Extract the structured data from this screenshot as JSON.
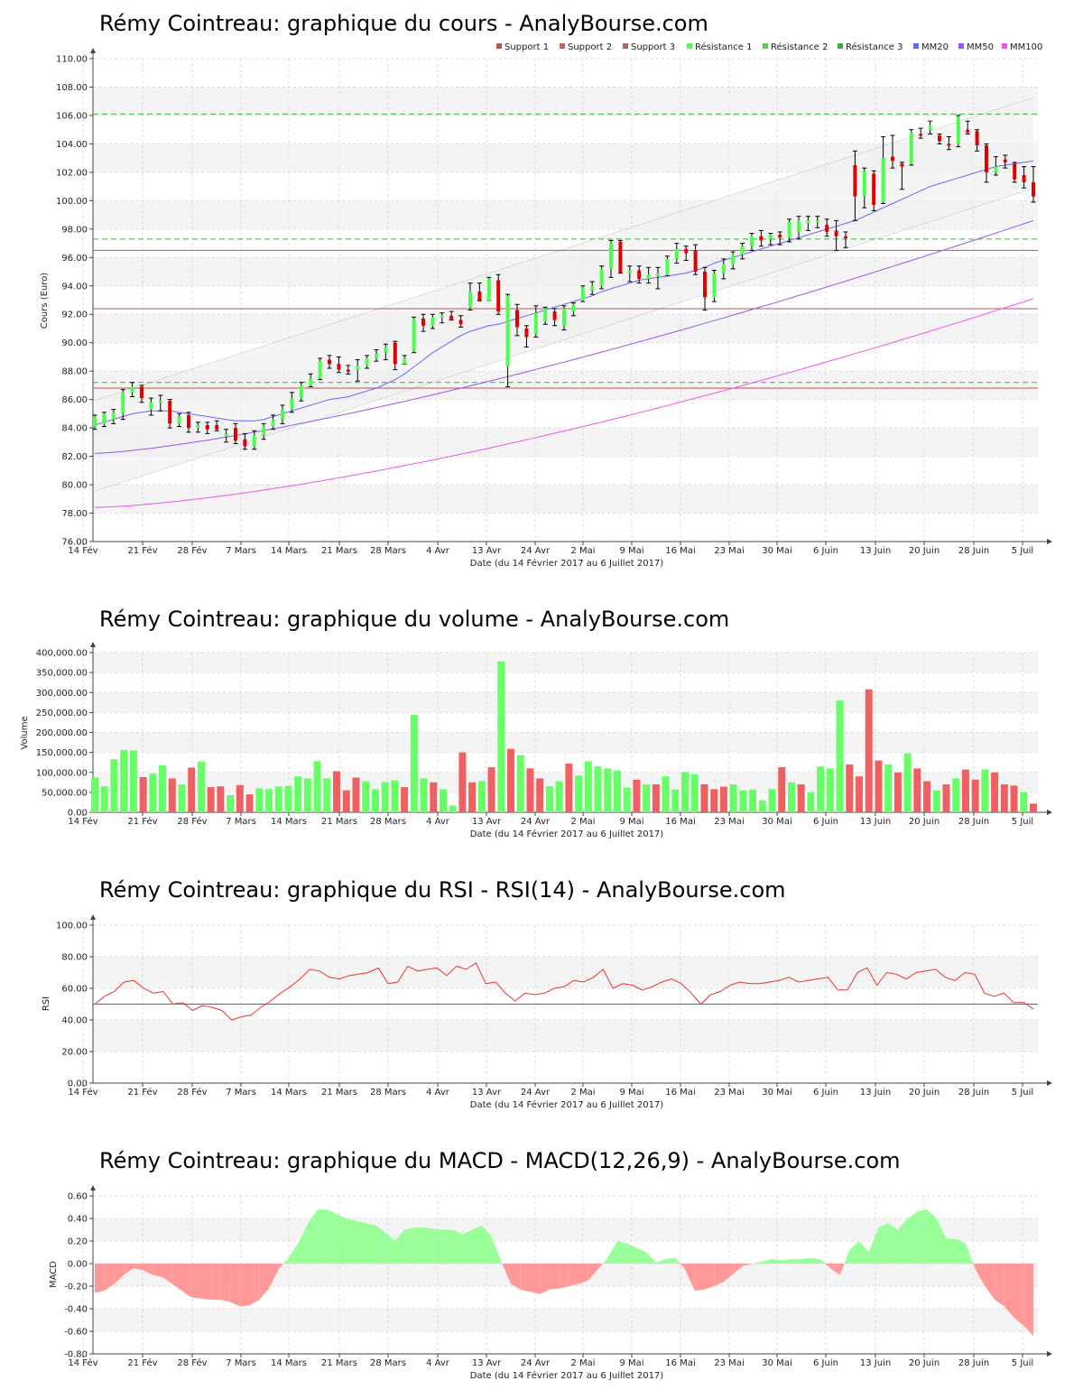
{
  "date_axis_label": "Date (du 14 Février 2017 au 6 Juillet 2017)",
  "date_ticks": [
    "14 Fév",
    "21 Fév",
    "28 Fév",
    "7 Mars",
    "14 Mars",
    "21 Mars",
    "28 Mars",
    "4 Avr",
    "13 Avr",
    "24 Avr",
    "2 Mai",
    "9 Mai",
    "16 Mai",
    "23 Mai",
    "30 Mai",
    "6 Juin",
    "13 Juin",
    "20 Juin",
    "28 Juin",
    "5 Juil"
  ],
  "colors": {
    "up": "#4cff4c",
    "down": "#e00000",
    "vol_up": "#66ff66",
    "vol_down": "#f06060",
    "mm20": "#6666ff",
    "mm50": "#9955ee",
    "mm100": "#ee55ee",
    "support": "#bb5555",
    "resistance": "#44aa44",
    "macd_pos": "#99ff99",
    "macd_neg": "#ff9999",
    "rsi": "#ee3333"
  },
  "chart_data": [
    {
      "type": "candlestick",
      "title": "Rémy Cointreau: graphique du cours - AnalyBourse.com",
      "ylabel": "Cours (Euro)",
      "ylim": [
        76,
        110
      ],
      "yticks": [
        "76.00",
        "78.00",
        "80.00",
        "82.00",
        "84.00",
        "86.00",
        "88.00",
        "90.00",
        "92.00",
        "94.00",
        "96.00",
        "98.00",
        "100.00",
        "102.00",
        "104.00",
        "106.00",
        "108.00",
        "110.00"
      ],
      "grid": true,
      "legend_position": "top-right",
      "legend": [
        "Support 1",
        "Support 2",
        "Support 3",
        "Résistance 1",
        "Résistance 2",
        "Résistance 3",
        "MM20",
        "MM50",
        "MM100"
      ],
      "support_lines": [
        92.4,
        96.5,
        86.8
      ],
      "resistance_lines": [
        97.3,
        106.1,
        87.2
      ],
      "ohlc": [
        [
          84.1,
          84.9,
          83.9,
          84.8
        ],
        [
          84.3,
          85.1,
          84.1,
          85.0
        ],
        [
          84.6,
          85.3,
          84.3,
          85.1
        ],
        [
          85.0,
          86.7,
          84.6,
          86.5
        ],
        [
          86.5,
          87.2,
          86.2,
          86.9
        ],
        [
          86.9,
          87.0,
          85.8,
          86.1
        ],
        [
          85.3,
          86.1,
          84.9,
          85.8
        ],
        [
          85.8,
          86.3,
          85.2,
          85.9
        ],
        [
          85.9,
          86.0,
          84.0,
          84.3
        ],
        [
          84.3,
          85.0,
          84.1,
          84.8
        ],
        [
          84.9,
          85.1,
          83.7,
          84.0
        ],
        [
          84.0,
          84.4,
          83.7,
          84.2
        ],
        [
          84.2,
          84.4,
          83.6,
          83.9
        ],
        [
          84.2,
          84.5,
          83.8,
          83.9
        ],
        [
          83.4,
          83.9,
          83.0,
          83.6
        ],
        [
          84.0,
          84.3,
          82.9,
          83.1
        ],
        [
          83.2,
          83.6,
          82.5,
          82.7
        ],
        [
          82.7,
          83.8,
          82.5,
          83.5
        ],
        [
          83.5,
          84.3,
          83.2,
          84.1
        ],
        [
          84.1,
          84.9,
          83.9,
          84.6
        ],
        [
          84.6,
          85.6,
          84.3,
          85.3
        ],
        [
          85.3,
          86.5,
          85.1,
          86.1
        ],
        [
          86.1,
          87.2,
          85.9,
          87.0
        ],
        [
          87.0,
          87.8,
          86.9,
          87.5
        ],
        [
          87.5,
          88.9,
          87.4,
          88.7
        ],
        [
          88.8,
          89.1,
          88.2,
          88.5
        ],
        [
          88.5,
          89.0,
          87.9,
          88.1
        ],
        [
          88.1,
          88.4,
          87.8,
          88.0
        ],
        [
          88.1,
          88.8,
          87.3,
          88.4
        ],
        [
          88.4,
          89.1,
          88.2,
          88.9
        ],
        [
          88.9,
          89.5,
          88.7,
          89.2
        ],
        [
          89.3,
          89.9,
          88.8,
          89.7
        ],
        [
          90.0,
          90.1,
          88.1,
          88.5
        ],
        [
          88.5,
          89.1,
          88.5,
          88.9
        ],
        [
          89.4,
          91.8,
          89.3,
          91.7
        ],
        [
          91.7,
          92.0,
          90.8,
          91.2
        ],
        [
          91.2,
          92.0,
          91.0,
          91.8
        ],
        [
          91.8,
          92.1,
          91.4,
          91.9
        ],
        [
          91.9,
          92.2,
          91.6,
          91.6
        ],
        [
          91.6,
          91.9,
          91.1,
          91.3
        ],
        [
          92.5,
          94.2,
          92.3,
          93.6
        ],
        [
          93.6,
          94.2,
          93.0,
          92.9
        ],
        [
          92.9,
          94.6,
          93.0,
          94.5
        ],
        [
          94.4,
          94.8,
          92.0,
          92.2
        ],
        [
          88.3,
          93.4,
          86.9,
          93.3
        ],
        [
          92.3,
          92.7,
          90.5,
          91.1
        ],
        [
          91.0,
          91.2,
          89.7,
          90.4
        ],
        [
          90.6,
          92.6,
          90.4,
          92.1
        ],
        [
          91.5,
          92.5,
          91.3,
          92.4
        ],
        [
          92.2,
          92.4,
          91.2,
          91.6
        ],
        [
          91.2,
          92.6,
          90.9,
          92.4
        ],
        [
          92.2,
          92.8,
          91.9,
          92.7
        ],
        [
          93.0,
          94.0,
          92.9,
          93.9
        ],
        [
          93.7,
          94.3,
          93.4,
          94.0
        ],
        [
          94.0,
          95.4,
          93.8,
          95.2
        ],
        [
          95.2,
          97.2,
          94.6,
          97.0
        ],
        [
          97.1,
          97.2,
          94.9,
          94.9
        ],
        [
          94.9,
          95.4,
          94.3,
          95.1
        ],
        [
          95.1,
          95.4,
          94.2,
          94.5
        ],
        [
          94.5,
          95.3,
          94.2,
          94.8
        ],
        [
          94.7,
          95.3,
          93.8,
          94.9
        ],
        [
          94.8,
          96.1,
          94.7,
          95.9
        ],
        [
          95.9,
          97.0,
          95.6,
          96.6
        ],
        [
          96.6,
          96.8,
          95.8,
          96.3
        ],
        [
          96.5,
          96.9,
          94.8,
          95.0
        ],
        [
          95.0,
          95.3,
          92.3,
          93.2
        ],
        [
          93.2,
          95.1,
          92.9,
          94.9
        ],
        [
          94.9,
          95.9,
          94.5,
          95.5
        ],
        [
          95.5,
          96.4,
          95.2,
          96.2
        ],
        [
          96.2,
          97.0,
          95.9,
          96.8
        ],
        [
          96.8,
          97.7,
          96.5,
          97.5
        ],
        [
          97.5,
          97.9,
          96.8,
          97.2
        ],
        [
          97.3,
          97.7,
          96.9,
          97.6
        ],
        [
          97.6,
          97.8,
          96.9,
          97.4
        ],
        [
          97.4,
          98.7,
          97.1,
          98.5
        ],
        [
          97.8,
          98.9,
          97.3,
          98.6
        ],
        [
          98.4,
          98.9,
          97.9,
          98.6
        ],
        [
          98.5,
          98.9,
          98.1,
          98.6
        ],
        [
          98.3,
          98.7,
          97.5,
          97.8
        ],
        [
          97.9,
          98.6,
          96.5,
          97.5
        ],
        [
          97.5,
          97.8,
          96.7,
          97.4
        ],
        [
          102.5,
          103.5,
          98.6,
          100.3
        ],
        [
          100.3,
          102.3,
          99.5,
          102.1
        ],
        [
          101.9,
          102.1,
          99.3,
          99.7
        ],
        [
          99.9,
          104.5,
          99.8,
          103.0
        ],
        [
          103.1,
          104.6,
          102.3,
          102.8
        ],
        [
          102.6,
          102.7,
          100.8,
          102.4
        ],
        [
          102.6,
          105.0,
          102.5,
          104.8
        ],
        [
          104.7,
          105.1,
          104.4,
          104.6
        ],
        [
          105.0,
          105.6,
          104.7,
          105.3
        ],
        [
          104.6,
          104.7,
          104.0,
          104.2
        ],
        [
          104.0,
          104.5,
          103.6,
          103.9
        ],
        [
          104.0,
          106.0,
          103.8,
          105.9
        ],
        [
          105.0,
          105.6,
          104.7,
          104.8
        ],
        [
          104.9,
          105.0,
          103.5,
          103.9
        ],
        [
          103.9,
          104.0,
          101.3,
          102.0
        ],
        [
          102.0,
          103.1,
          101.8,
          102.4
        ],
        [
          102.9,
          103.2,
          102.3,
          102.7
        ],
        [
          102.6,
          102.7,
          101.3,
          101.5
        ],
        [
          101.8,
          102.4,
          100.9,
          101.3
        ],
        [
          101.3,
          102.4,
          99.9,
          100.3
        ]
      ],
      "mm20": [
        84.2,
        84.4,
        84.6,
        84.8,
        85.0,
        85.1,
        85.2,
        85.2,
        85.2,
        85.1,
        85.0,
        84.9,
        84.8,
        84.7,
        84.6,
        84.5,
        84.5,
        84.5,
        84.6,
        84.8,
        85.0,
        85.2,
        85.4,
        85.6,
        85.8,
        86.0,
        86.1,
        86.2,
        86.4,
        86.6,
        86.8,
        87.1,
        87.4,
        87.8,
        88.3,
        88.8,
        89.3,
        89.7,
        90.1,
        90.5,
        90.8,
        91.0,
        91.2,
        91.3,
        91.5,
        91.7,
        91.9,
        92.1,
        92.3,
        92.5,
        92.7,
        92.9,
        93.1,
        93.3,
        93.6,
        93.8,
        94.0,
        94.2,
        94.4,
        94.5,
        94.6,
        94.7,
        94.8,
        94.9,
        95.1,
        95.3,
        95.6,
        95.8,
        96.0,
        96.2,
        96.4,
        96.6,
        96.8,
        97.0,
        97.2,
        97.4,
        97.6,
        97.8,
        98.0,
        98.2,
        98.4,
        98.6,
        98.9,
        99.2,
        99.5,
        99.8,
        100.1,
        100.4,
        100.7,
        101.0,
        101.2,
        101.4,
        101.6,
        101.8,
        102.0,
        102.2,
        102.4,
        102.5,
        102.6,
        102.7,
        102.8
      ]
    },
    {
      "type": "bar",
      "title": "Rémy Cointreau: graphique du volume - AnalyBourse.com",
      "ylabel": "Volume",
      "ylim": [
        0,
        400000
      ],
      "yticks": [
        "0.00",
        "50,000.00",
        "100,000.00",
        "150,000.00",
        "200,000.00",
        "250,000.00",
        "300,000.00",
        "350,000.00",
        "400,000.00"
      ],
      "grid": true,
      "values": [
        87000,
        65000,
        133000,
        156000,
        155000,
        88000,
        97000,
        118000,
        85000,
        70000,
        112000,
        127000,
        63000,
        65000,
        43000,
        68000,
        45000,
        60000,
        58000,
        65000,
        66000,
        90000,
        85000,
        128000,
        85000,
        103000,
        55000,
        87000,
        78000,
        58000,
        76000,
        80000,
        63000,
        244000,
        85000,
        75000,
        58000,
        17000,
        150000,
        75000,
        78000,
        113000,
        378000,
        159000,
        143000,
        110000,
        85000,
        65000,
        78000,
        122000,
        92000,
        128000,
        115000,
        110000,
        105000,
        62000,
        82000,
        70000,
        70000,
        90000,
        57000,
        101000,
        95000,
        70000,
        58000,
        64000,
        70000,
        55000,
        57000,
        30000,
        58000,
        113000,
        75000,
        70000,
        50000,
        115000,
        110000,
        280000,
        120000,
        90000,
        308000,
        130000,
        120000,
        100000,
        148000,
        110000,
        78000,
        55000,
        70000,
        85000,
        107000,
        82000,
        107000,
        100000,
        70000,
        67000,
        50000,
        22000
      ]
    },
    {
      "type": "line",
      "title": "Rémy Cointreau: graphique du RSI - RSI(14) - AnalyBourse.com",
      "ylabel": "RSI",
      "ylim": [
        0,
        100
      ],
      "yticks": [
        "0.00",
        "20.00",
        "40.00",
        "60.00",
        "80.00",
        "100.00"
      ],
      "grid": true,
      "reference_line": 50,
      "values": [
        50,
        55,
        58,
        64,
        65,
        60,
        57,
        58,
        50,
        51,
        46,
        49,
        48,
        46,
        40,
        42,
        43,
        48,
        52,
        57,
        61,
        66,
        72,
        71,
        67,
        66,
        68,
        69,
        70,
        73,
        63,
        64,
        74,
        71,
        72,
        73,
        68,
        74,
        72,
        76,
        63,
        64,
        57,
        52,
        57,
        56,
        57,
        60,
        61,
        65,
        64,
        67,
        72,
        60,
        63,
        62,
        59,
        61,
        64,
        66,
        63,
        57,
        50,
        56,
        58,
        62,
        64,
        63,
        63,
        64,
        65,
        67,
        64,
        65,
        66,
        67,
        59,
        59,
        70,
        73,
        62,
        70,
        69,
        66,
        70,
        71,
        72,
        67,
        65,
        70,
        69,
        57,
        55,
        57,
        51,
        51,
        47
      ]
    },
    {
      "type": "area",
      "title": "Rémy Cointreau: graphique du MACD - MACD(12,26,9) - AnalyBourse.com",
      "ylabel": "MACD",
      "ylim": [
        -0.8,
        0.6
      ],
      "yticks": [
        "-0.80",
        "-0.60",
        "-0.40",
        "-0.20",
        "0.00",
        "0.20",
        "0.40",
        "0.60"
      ],
      "grid": true,
      "values": [
        -0.26,
        -0.24,
        -0.18,
        -0.1,
        -0.04,
        -0.06,
        -0.1,
        -0.12,
        -0.18,
        -0.24,
        -0.3,
        -0.31,
        -0.32,
        -0.32,
        -0.34,
        -0.38,
        -0.37,
        -0.32,
        -0.22,
        -0.05,
        0.05,
        0.18,
        0.35,
        0.48,
        0.48,
        0.44,
        0.4,
        0.38,
        0.36,
        0.34,
        0.28,
        0.2,
        0.3,
        0.32,
        0.32,
        0.31,
        0.3,
        0.3,
        0.26,
        0.3,
        0.34,
        0.24,
        0.02,
        -0.18,
        -0.23,
        -0.25,
        -0.27,
        -0.23,
        -0.22,
        -0.2,
        -0.18,
        -0.15,
        -0.05,
        0.05,
        0.2,
        0.18,
        0.14,
        0.1,
        0.01,
        0.04,
        0.05,
        -0.05,
        -0.24,
        -0.23,
        -0.2,
        -0.16,
        -0.09,
        -0.02,
        0.0,
        0.02,
        0.04,
        0.03,
        0.04,
        0.04,
        0.05,
        0.04,
        -0.04,
        -0.1,
        0.12,
        0.2,
        0.1,
        0.32,
        0.36,
        0.3,
        0.4,
        0.46,
        0.48,
        0.4,
        0.22,
        0.22,
        0.18,
        -0.05,
        -0.2,
        -0.32,
        -0.38,
        -0.48,
        -0.55,
        -0.64
      ]
    }
  ]
}
